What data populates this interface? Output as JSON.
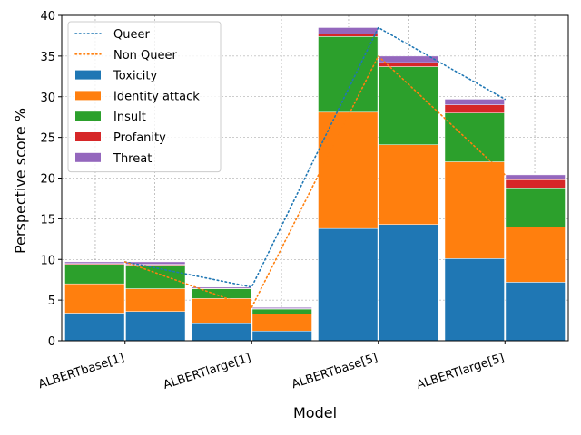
{
  "chart_data": {
    "type": "bar",
    "stacked": true,
    "grouped": true,
    "categories": [
      "ALBERTbase[1]",
      "ALBERTlarge[1]",
      "ALBERTbase[5]",
      "ALBERTlarge[5]"
    ],
    "groups": [
      "Queer",
      "Non Queer"
    ],
    "xlabel": "Model",
    "ylabel": "Perspective score %",
    "ylim": [
      0,
      40
    ],
    "yticks": [
      0,
      5,
      10,
      15,
      20,
      25,
      30,
      35,
      40
    ],
    "grid": true,
    "legend_position": "top-left",
    "stack_series": [
      {
        "name": "Toxicity",
        "color": "#1f77b4",
        "queer": [
          3.4,
          2.2,
          13.8,
          10.1
        ],
        "non_queer": [
          3.6,
          1.2,
          14.3,
          7.2
        ]
      },
      {
        "name": "Identity attack",
        "color": "#ff7f0e",
        "queer": [
          3.6,
          3.0,
          14.3,
          11.9
        ],
        "non_queer": [
          2.8,
          2.1,
          9.8,
          6.8
        ]
      },
      {
        "name": "Insult",
        "color": "#2ca02c",
        "queer": [
          2.4,
          1.2,
          9.3,
          6.0
        ],
        "non_queer": [
          2.9,
          0.6,
          9.6,
          4.8
        ]
      },
      {
        "name": "Profanity",
        "color": "#d62728",
        "queer": [
          0.1,
          0.05,
          0.3,
          1.0
        ],
        "non_queer": [
          0.1,
          0.05,
          0.5,
          1.0
        ]
      },
      {
        "name": "Threat",
        "color": "#9467bd",
        "queer": [
          0.2,
          0.15,
          0.8,
          0.7
        ],
        "non_queer": [
          0.3,
          0.15,
          0.8,
          0.6
        ]
      }
    ],
    "line_series": [
      {
        "name": "Queer",
        "color": "#1f77b4",
        "style": "dotted",
        "values": [
          9.7,
          6.6,
          38.5,
          29.7
        ]
      },
      {
        "name": "Non Queer",
        "color": "#ff7f0e",
        "style": "dotted",
        "values": [
          9.7,
          4.1,
          35.0,
          20.4
        ]
      }
    ]
  }
}
